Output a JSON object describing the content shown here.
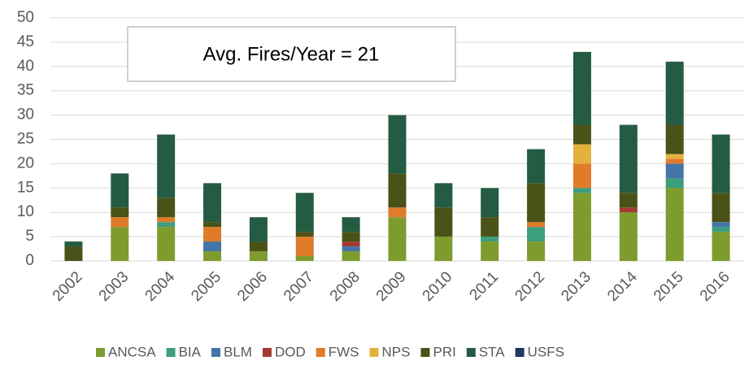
{
  "chart_data": {
    "type": "stacked_bar",
    "annotation": "Avg. Fires/Year =  21",
    "categories": [
      "2002",
      "2003",
      "2004",
      "2005",
      "2006",
      "2007",
      "2008",
      "2009",
      "2010",
      "2011",
      "2012",
      "2013",
      "2014",
      "2015",
      "2016"
    ],
    "series": [
      {
        "name": "ANCSA",
        "color": "#7e9b2e",
        "values": [
          0,
          7,
          7,
          2,
          2,
          1,
          2,
          9,
          5,
          4,
          4,
          14,
          10,
          15,
          6
        ]
      },
      {
        "name": "BIA",
        "color": "#3c9e7c",
        "values": [
          0,
          0,
          1,
          0,
          0,
          0,
          0,
          0,
          0,
          1,
          3,
          1,
          0,
          2,
          1
        ]
      },
      {
        "name": "BLM",
        "color": "#4475a8",
        "values": [
          0,
          0,
          0,
          2,
          0,
          0,
          1,
          0,
          0,
          0,
          0,
          0,
          0,
          3,
          1
        ]
      },
      {
        "name": "DOD",
        "color": "#a23a32",
        "values": [
          0,
          0,
          0,
          0,
          0,
          0,
          1,
          0,
          0,
          0,
          0,
          0,
          1,
          0,
          0
        ]
      },
      {
        "name": "FWS",
        "color": "#e07b2a",
        "values": [
          0,
          2,
          1,
          3,
          0,
          4,
          0,
          2,
          0,
          0,
          1,
          5,
          0,
          1,
          0
        ]
      },
      {
        "name": "NPS",
        "color": "#e3b23c",
        "values": [
          0,
          0,
          0,
          0,
          0,
          0,
          0,
          0,
          0,
          0,
          0,
          4,
          0,
          1,
          0
        ]
      },
      {
        "name": "PRI",
        "color": "#4a5218",
        "values": [
          3,
          2,
          4,
          1,
          2,
          1,
          2,
          7,
          6,
          4,
          8,
          4,
          3,
          6,
          6
        ]
      },
      {
        "name": "STA",
        "color": "#235c43",
        "values": [
          1,
          7,
          13,
          8,
          5,
          8,
          3,
          12,
          5,
          6,
          7,
          15,
          14,
          13,
          12
        ]
      },
      {
        "name": "USFS",
        "color": "#1f3a5f",
        "values": [
          0,
          0,
          0,
          0,
          0,
          0,
          0,
          0,
          0,
          0,
          0,
          0,
          0,
          0,
          0
        ]
      }
    ],
    "ylim": [
      0,
      50
    ],
    "yticks": [
      0,
      5,
      10,
      15,
      20,
      25,
      30,
      35,
      40,
      45,
      50
    ],
    "grid": true,
    "legend": "bottom"
  }
}
